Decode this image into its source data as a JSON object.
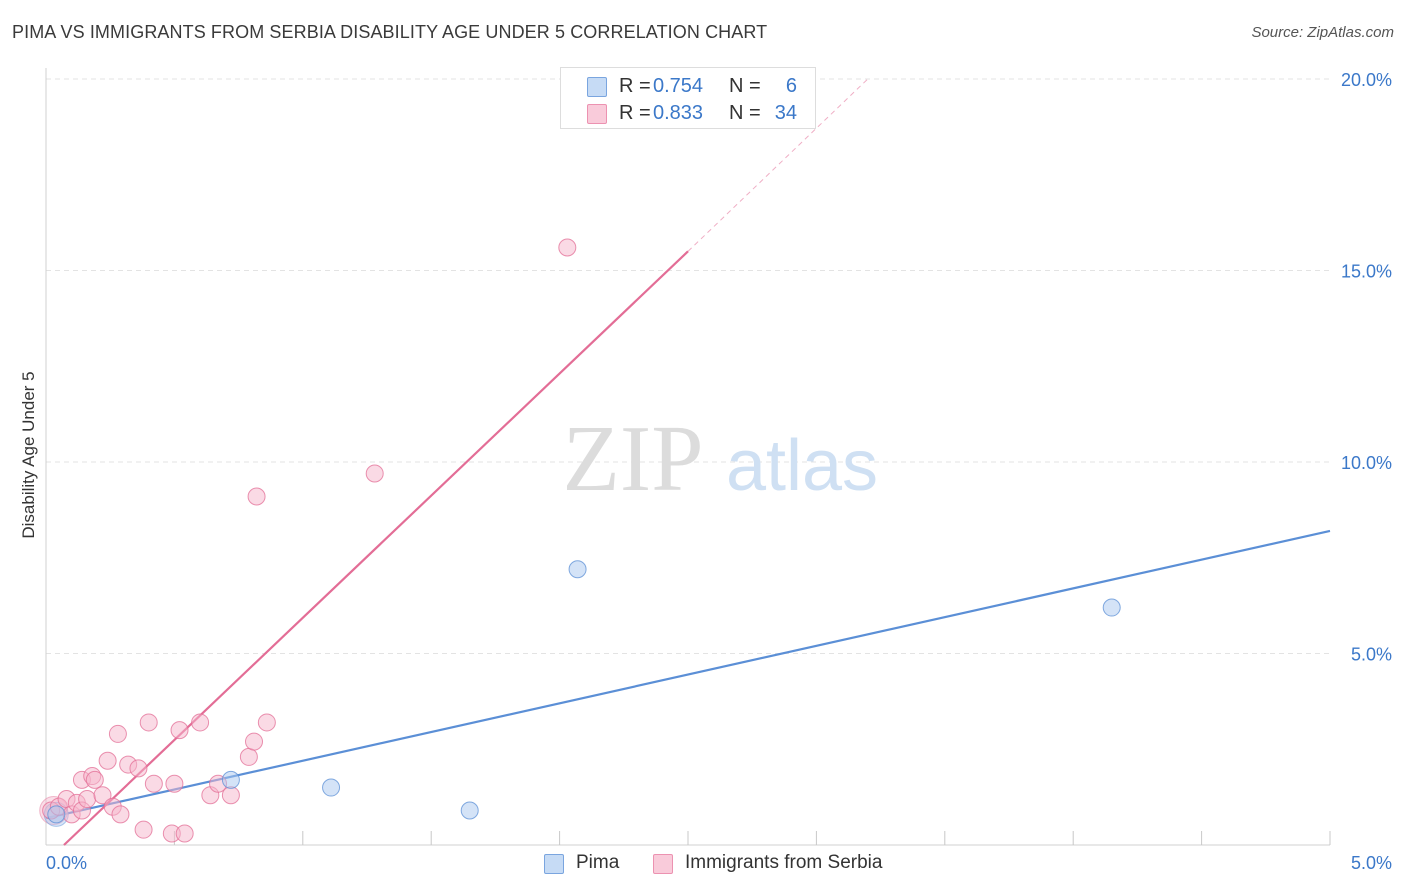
{
  "chart_data": {
    "type": "scatter",
    "title": "PIMA VS IMMIGRANTS FROM SERBIA DISABILITY AGE UNDER 5 CORRELATION CHART",
    "source": "Source: ZipAtlas.com",
    "watermark": {
      "part1": "ZIP",
      "part2": "atlas"
    },
    "ylabel": "Disability Age Under 5",
    "xlabel": "",
    "xlim": [
      0,
      5
    ],
    "ylim": [
      0,
      20
    ],
    "x_tick_labels": [
      {
        "value": 0,
        "label": "0.0%"
      },
      {
        "value": 5,
        "label": "5.0%"
      }
    ],
    "y_tick_labels": [
      {
        "value": 5,
        "label": "5.0%"
      },
      {
        "value": 10,
        "label": "10.0%"
      },
      {
        "value": 15,
        "label": "15.0%"
      },
      {
        "value": 20,
        "label": "20.0%"
      }
    ],
    "legend": {
      "r_label": "R =",
      "n_label": "N =",
      "entries": [
        {
          "name": "Pima",
          "r": "0.754",
          "n": "6"
        },
        {
          "name": "Immigrants from Serbia",
          "r": "0.833",
          "n": "34"
        }
      ]
    },
    "series": [
      {
        "name": "Pima",
        "color": "#5b8fd6",
        "fill": "#aac8ef",
        "trend": {
          "x0": 0.0,
          "y0": 0.7,
          "x1": 5.0,
          "y1": 8.2,
          "dashed_to": null
        },
        "points": [
          {
            "x": 0.04,
            "y": 0.8
          },
          {
            "x": 0.72,
            "y": 1.7
          },
          {
            "x": 1.11,
            "y": 1.5
          },
          {
            "x": 1.65,
            "y": 0.9
          },
          {
            "x": 2.07,
            "y": 7.2
          },
          {
            "x": 4.15,
            "y": 6.2
          }
        ]
      },
      {
        "name": "Immigrants from Serbia",
        "color": "#e36d96",
        "fill": "#f5b6cb",
        "trend": {
          "x0": 0.07,
          "y0": 0.0,
          "x1": 2.5,
          "y1": 15.5,
          "dashed_to": {
            "x": 3.2,
            "y": 20.0
          }
        },
        "points": [
          {
            "x": 0.02,
            "y": 0.9
          },
          {
            "x": 0.05,
            "y": 1.0
          },
          {
            "x": 0.08,
            "y": 1.2
          },
          {
            "x": 0.1,
            "y": 0.8
          },
          {
            "x": 0.12,
            "y": 1.1
          },
          {
            "x": 0.14,
            "y": 0.9
          },
          {
            "x": 0.14,
            "y": 1.7
          },
          {
            "x": 0.16,
            "y": 1.2
          },
          {
            "x": 0.18,
            "y": 1.8
          },
          {
            "x": 0.19,
            "y": 1.7
          },
          {
            "x": 0.22,
            "y": 1.3
          },
          {
            "x": 0.24,
            "y": 2.2
          },
          {
            "x": 0.26,
            "y": 1.0
          },
          {
            "x": 0.28,
            "y": 2.9
          },
          {
            "x": 0.29,
            "y": 0.8
          },
          {
            "x": 0.32,
            "y": 2.1
          },
          {
            "x": 0.36,
            "y": 2.0
          },
          {
            "x": 0.38,
            "y": 0.4
          },
          {
            "x": 0.4,
            "y": 3.2
          },
          {
            "x": 0.42,
            "y": 1.6
          },
          {
            "x": 0.49,
            "y": 0.3
          },
          {
            "x": 0.5,
            "y": 1.6
          },
          {
            "x": 0.52,
            "y": 3.0
          },
          {
            "x": 0.54,
            "y": 0.3
          },
          {
            "x": 0.6,
            "y": 3.2
          },
          {
            "x": 0.64,
            "y": 1.3
          },
          {
            "x": 0.67,
            "y": 1.6
          },
          {
            "x": 0.72,
            "y": 1.3
          },
          {
            "x": 0.79,
            "y": 2.3
          },
          {
            "x": 0.81,
            "y": 2.7
          },
          {
            "x": 0.82,
            "y": 9.1
          },
          {
            "x": 0.86,
            "y": 3.2
          },
          {
            "x": 1.28,
            "y": 9.7
          },
          {
            "x": 2.03,
            "y": 15.6
          }
        ]
      }
    ]
  }
}
